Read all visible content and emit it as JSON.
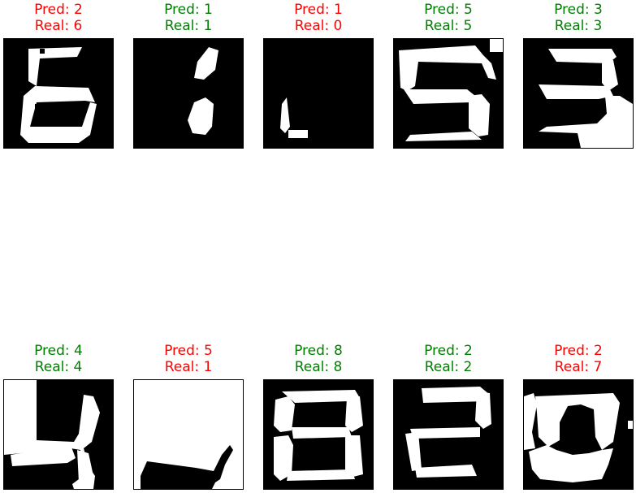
{
  "colors": {
    "correct": "#008000",
    "wrong": "#ff0000",
    "foreground": "#ffffff",
    "background": "#000000"
  },
  "panels": [
    {
      "pred_label": "Pred: 2",
      "real_label": "Real: 6",
      "correct": false
    },
    {
      "pred_label": "Pred: 1",
      "real_label": "Real: 1",
      "correct": true
    },
    {
      "pred_label": "Pred: 1",
      "real_label": "Real: 0",
      "correct": false
    },
    {
      "pred_label": "Pred: 5",
      "real_label": "Real: 5",
      "correct": true
    },
    {
      "pred_label": "Pred: 3",
      "real_label": "Real: 3",
      "correct": true
    },
    {
      "pred_label": "Pred: 4",
      "real_label": "Real: 4",
      "correct": true
    },
    {
      "pred_label": "Pred: 5",
      "real_label": "Real: 1",
      "correct": false
    },
    {
      "pred_label": "Pred: 8",
      "real_label": "Real: 8",
      "correct": true
    },
    {
      "pred_label": "Pred: 2",
      "real_label": "Real: 2",
      "correct": true
    },
    {
      "pred_label": "Pred: 2",
      "real_label": "Real: 7",
      "correct": false
    }
  ]
}
